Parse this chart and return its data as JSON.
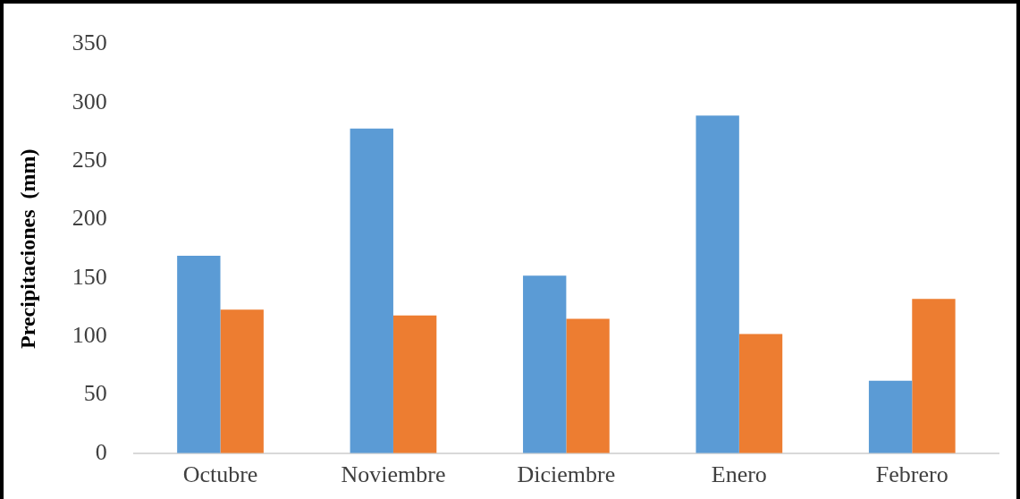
{
  "chart_data": {
    "type": "bar",
    "ylabel": "Precipitaciones  (mm)",
    "categories": [
      "Octubre",
      "Noviembre",
      "Diciembre",
      "Enero",
      "Febrero"
    ],
    "series": [
      {
        "color": "#5b9bd5",
        "values": [
          169,
          278,
          152,
          289,
          62
        ]
      },
      {
        "color": "#ed7d31",
        "values": [
          123,
          118,
          115,
          102,
          132
        ]
      }
    ],
    "ylim": [
      0,
      350
    ],
    "yticks": [
      0,
      50,
      100,
      150,
      200,
      250,
      300,
      350
    ],
    "grid": false,
    "legend": false
  }
}
